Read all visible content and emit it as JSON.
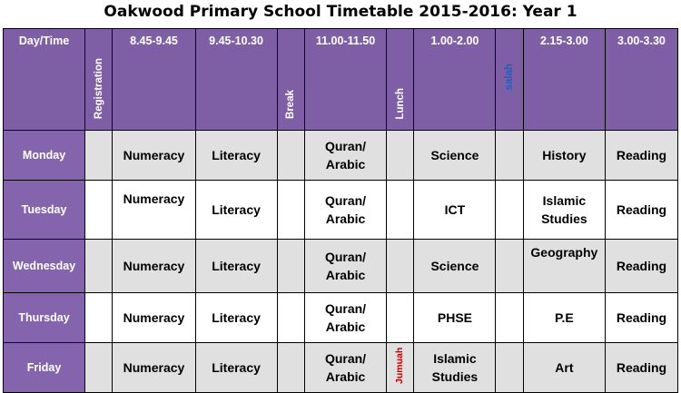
{
  "title": "Oakwood Primary School Timetable 2015-2016: Year 1",
  "header": {
    "corner": "Day/Time",
    "registration": "Registration",
    "break": "Break",
    "lunch": "Lunch",
    "salah": "salah",
    "slots": [
      "8.45-9.45",
      "9.45-10.30",
      "11.00-11.50",
      "1.00-2.00",
      "2.15-3.00",
      "3.00-3.30"
    ]
  },
  "colors": {
    "header_bg": "#7e5fa6",
    "salah_text": "#1f5fbf",
    "jumuah_text": "#c00000",
    "odd_row": "#e0e0e0"
  },
  "rows": [
    {
      "day": "Monday",
      "p1": "Numeracy",
      "p2": "Literacy",
      "p3a": "Quran/",
      "p3b": "Arabic",
      "lunch_note": "",
      "p4": "Science",
      "p5": "History",
      "p6": "Reading"
    },
    {
      "day": "Tuesday",
      "p1": "Numeracy",
      "p2": "Literacy",
      "p3a": "Quran/",
      "p3b": "Arabic",
      "lunch_note": "",
      "p4": "ICT",
      "p5": "Islamic Studies",
      "p6": "Reading"
    },
    {
      "day": "Wednesday",
      "p1": "Numeracy",
      "p2": "Literacy",
      "p3a": "Quran/",
      "p3b": "Arabic",
      "lunch_note": "",
      "p4": "Science",
      "p5": "Geography",
      "p6": "Reading"
    },
    {
      "day": "Thursday",
      "p1": "Numeracy",
      "p2": "Literacy",
      "p3a": "Quran/",
      "p3b": "Arabic",
      "lunch_note": "",
      "p4": "PHSE",
      "p5": "P.E",
      "p6": "Reading"
    },
    {
      "day": "Friday",
      "p1": "Numeracy",
      "p2": "Literacy",
      "p3a": "Quran/",
      "p3b": "Arabic",
      "lunch_note": "Jumuah",
      "p4": "Islamic Studies",
      "p5": "Art",
      "p6": "Reading"
    }
  ]
}
